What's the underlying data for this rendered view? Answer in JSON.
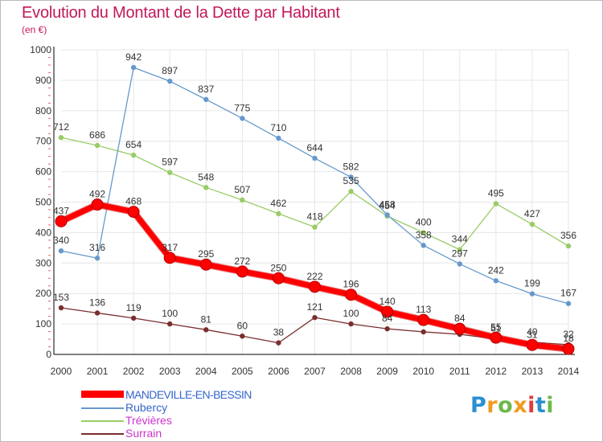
{
  "page": {
    "title": "Evolution du Montant de la Dette par Habitant",
    "subtitle": "(en €)"
  },
  "colors": {
    "title": "#c2185b",
    "axis": "#000000",
    "grid": "#e6e6e6"
  },
  "legend": [
    {
      "label": "MANDEVILLE-EN-BESSIN",
      "color": "#ff0000",
      "label_color": "#3366cc"
    },
    {
      "label": "Rubercy",
      "color": "#6699cc",
      "label_color": "#3366cc"
    },
    {
      "label": "Trévières",
      "color": "#99cc66",
      "label_color": "#cc33cc"
    },
    {
      "label": "Surrain",
      "color": "#7a2e2e",
      "label_color": "#cc33cc"
    }
  ],
  "logo": {
    "letters": [
      "P",
      "r",
      "o",
      "x",
      "i",
      "t",
      "i"
    ],
    "colors": [
      "#2a8fd0",
      "#f29a1f",
      "#6cb94a",
      "#f29a1f",
      "#e23a3a",
      "#2a8fd0",
      "#6cb94a"
    ]
  },
  "chart_data": {
    "type": "line",
    "x": [
      "2000",
      "2001",
      "2002",
      "2003",
      "2004",
      "2005",
      "2006",
      "2007",
      "2008",
      "2009",
      "2010",
      "2011",
      "2012",
      "2013",
      "2014"
    ],
    "ylim": [
      0,
      1000
    ],
    "yticks": [
      "0",
      "100",
      "200",
      "300",
      "400",
      "500",
      "600",
      "700",
      "800",
      "900",
      "1000"
    ],
    "grid": true,
    "legend_position": "bottom-left",
    "series": [
      {
        "name": "Surrain",
        "color": "#7a2e2e",
        "values": [
          153,
          136,
          119,
          100,
          81,
          60,
          38,
          121,
          100,
          84,
          74,
          66,
          51,
          40,
          32
        ],
        "labels": [
          "153",
          "136",
          "119",
          "100",
          "81",
          "60",
          "38",
          "121",
          "100",
          "84",
          "",
          "",
          "51",
          "40",
          "32"
        ]
      },
      {
        "name": "Trévières",
        "color": "#99cc66",
        "values": [
          712,
          686,
          654,
          597,
          548,
          507,
          462,
          418,
          535,
          454,
          400,
          344,
          495,
          427,
          356
        ],
        "labels": [
          "712",
          "686",
          "654",
          "597",
          "548",
          "507",
          "462",
          "418",
          "535",
          "454",
          "400",
          "344",
          "495",
          "427",
          "356"
        ]
      },
      {
        "name": "Rubercy",
        "color": "#6699cc",
        "values": [
          340,
          316,
          942,
          897,
          837,
          775,
          710,
          644,
          582,
          458,
          358,
          297,
          242,
          199,
          167
        ],
        "labels": [
          "340",
          "316",
          "942",
          "897",
          "837",
          "775",
          "710",
          "644",
          "582",
          "458",
          "358",
          "297",
          "242",
          "199",
          "167"
        ]
      },
      {
        "name": "MANDEVILLE-EN-BESSIN",
        "color": "#ff0000",
        "values": [
          437,
          492,
          468,
          317,
          295,
          272,
          250,
          222,
          196,
          140,
          113,
          84,
          55,
          31,
          18
        ],
        "labels": [
          "437",
          "492",
          "468",
          "317",
          "295",
          "272",
          "250",
          "222",
          "196",
          "140",
          "113",
          "84",
          "55",
          "31",
          "18"
        ]
      }
    ]
  }
}
